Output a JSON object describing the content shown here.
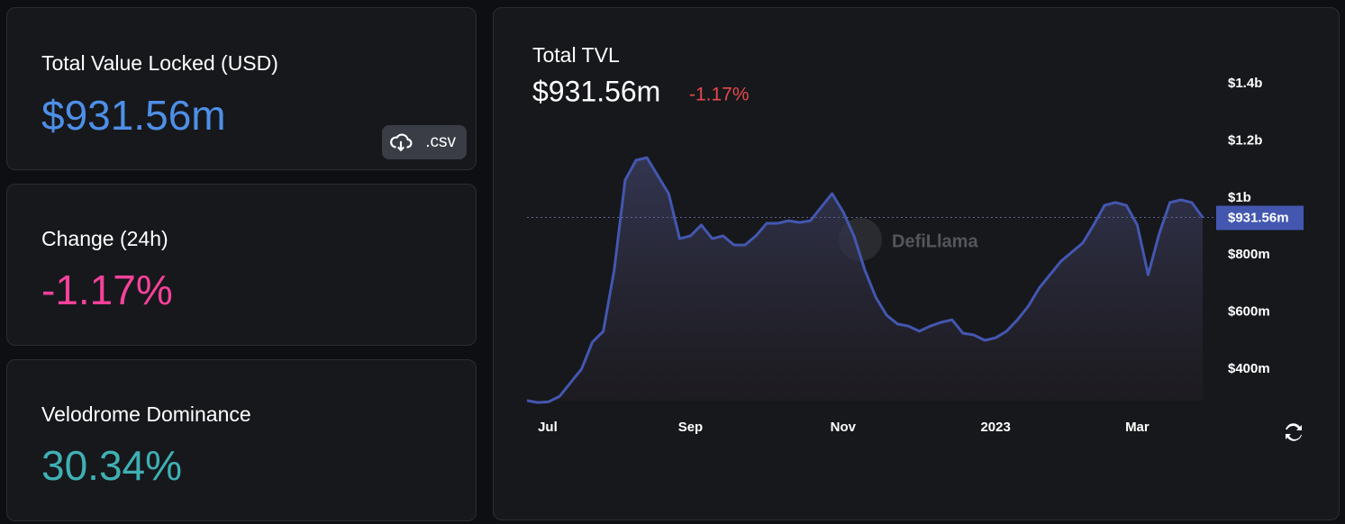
{
  "cards": [
    {
      "label": "Total Value Locked (USD)",
      "value": "$931.56m",
      "button": ".csv"
    },
    {
      "label": "Change (24h)",
      "value": "-1.17%"
    },
    {
      "label": "Velodrome Dominance",
      "value": "30.34%"
    }
  ],
  "chart_data": {
    "type": "line",
    "title": "Total TVL",
    "subtitle": "$931.56m",
    "change": "-1.17%",
    "watermark": "DefiLlama",
    "current_label": "$931.56m",
    "series": [
      {
        "name": "TVL",
        "color": "#4357b0",
        "values": [
          290,
          283,
          286,
          305,
          353,
          400,
          495,
          533,
          747,
          1062,
          1132,
          1141,
          1078,
          1015,
          857,
          867,
          905,
          857,
          867,
          835,
          835,
          867,
          911,
          911,
          920,
          914,
          920,
          968,
          1015,
          952,
          867,
          747,
          652,
          589,
          558,
          551,
          533,
          551,
          564,
          573,
          526,
          520,
          501,
          510,
          533,
          573,
          621,
          684,
          731,
          778,
          810,
          842,
          905,
          974,
          984,
          974,
          905,
          731,
          873,
          984,
          993,
          984,
          931.56
        ]
      }
    ],
    "xlim": [
      0,
      62
    ],
    "xticks": [
      {
        "value": 1,
        "label": "Jul"
      },
      {
        "value": 15,
        "label": "Sep"
      },
      {
        "value": 29,
        "label": "Nov"
      },
      {
        "value": 43,
        "label": "2023"
      },
      {
        "value": 56,
        "label": "Mar"
      }
    ],
    "ylim": [
      290,
      1500
    ],
    "yticks": [
      {
        "value": 400,
        "label": "$400m"
      },
      {
        "value": 600,
        "label": "$600m"
      },
      {
        "value": 800,
        "label": "$800m"
      },
      {
        "value": 1000,
        "label": "$1b"
      },
      {
        "value": 1200,
        "label": "$1.2b"
      },
      {
        "value": 1400,
        "label": "$1.4b"
      }
    ],
    "grid": false
  }
}
